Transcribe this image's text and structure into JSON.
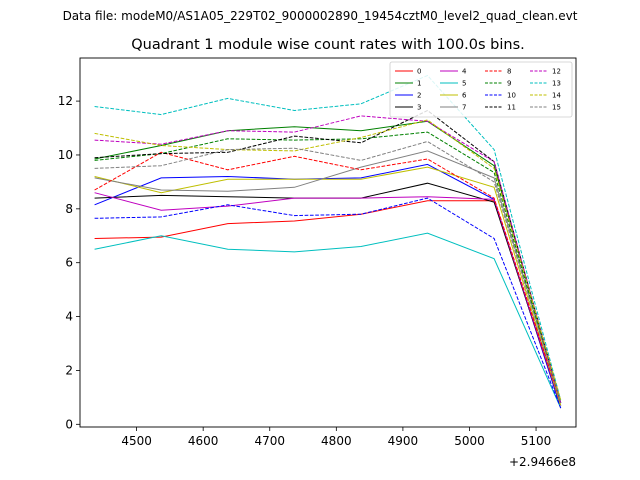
{
  "chart_data": {
    "type": "line",
    "suptitle": "Data file: modeM0/AS1A05_229T02_9000002890_19454cztM0_level2_quad_clean.evt",
    "title": "Quadrant 1 module wise count rates with 100.0s bins.",
    "xlabel": "",
    "ylabel": "",
    "x_offset_label": "+2.9466e8",
    "x": [
      4437,
      4537,
      4637,
      4737,
      4837,
      4937,
      5037,
      5137
    ],
    "xlim": [
      4415,
      5160
    ],
    "ylim": [
      -0.1,
      13.6
    ],
    "xticks": [
      4500,
      4600,
      4700,
      4800,
      4900,
      5000,
      5100
    ],
    "xtick_labels": [
      "4500",
      "4600",
      "4700",
      "4800",
      "4900",
      "5000",
      "5100"
    ],
    "yticks": [
      0,
      2,
      4,
      6,
      8,
      10,
      12
    ],
    "ytick_labels": [
      "0",
      "2",
      "4",
      "6",
      "8",
      "10",
      "12"
    ],
    "grid": false,
    "legend_location": "top-right",
    "series": [
      {
        "name": "0",
        "color": "#ff0000",
        "dash": "solid",
        "values": [
          6.9,
          6.95,
          7.45,
          7.55,
          7.8,
          8.3,
          8.3,
          0.7
        ]
      },
      {
        "name": "1",
        "color": "#008000",
        "dash": "solid",
        "values": [
          9.85,
          10.35,
          10.9,
          11.05,
          10.9,
          11.25,
          9.6,
          0.8
        ]
      },
      {
        "name": "2",
        "color": "#0000ff",
        "dash": "solid",
        "values": [
          8.15,
          9.15,
          9.2,
          9.1,
          9.15,
          9.65,
          8.35,
          0.6
        ]
      },
      {
        "name": "3",
        "color": "#000000",
        "dash": "solid",
        "values": [
          8.4,
          8.5,
          8.45,
          8.4,
          8.4,
          8.95,
          8.25,
          0.7
        ]
      },
      {
        "name": "4",
        "color": "#bf00bf",
        "dash": "solid",
        "values": [
          8.6,
          7.95,
          8.1,
          8.4,
          8.4,
          8.45,
          8.35,
          0.7
        ]
      },
      {
        "name": "5",
        "color": "#00bfbf",
        "dash": "solid",
        "values": [
          6.5,
          7.0,
          6.5,
          6.4,
          6.6,
          7.1,
          6.15,
          0.6
        ]
      },
      {
        "name": "6",
        "color": "#bfbf00",
        "dash": "solid",
        "values": [
          9.2,
          8.6,
          9.1,
          9.1,
          9.1,
          9.55,
          8.8,
          0.7
        ]
      },
      {
        "name": "7",
        "color": "#808080",
        "dash": "solid",
        "values": [
          9.15,
          8.7,
          8.65,
          8.8,
          9.55,
          10.15,
          9.15,
          0.8
        ]
      },
      {
        "name": "8",
        "color": "#ff0000",
        "dash": "dashed",
        "values": [
          8.7,
          10.1,
          9.45,
          9.95,
          9.45,
          9.85,
          8.4,
          0.8
        ]
      },
      {
        "name": "9",
        "color": "#008000",
        "dash": "dashed",
        "values": [
          9.8,
          10.05,
          10.6,
          10.55,
          10.6,
          10.85,
          9.35,
          0.8
        ]
      },
      {
        "name": "10",
        "color": "#0000ff",
        "dash": "dashed",
        "values": [
          7.65,
          7.7,
          8.15,
          7.75,
          7.8,
          8.4,
          6.9,
          0.6
        ]
      },
      {
        "name": "11",
        "color": "#000000",
        "dash": "dashed",
        "values": [
          9.9,
          10.05,
          10.1,
          10.7,
          10.45,
          11.65,
          9.75,
          0.8
        ]
      },
      {
        "name": "12",
        "color": "#bf00bf",
        "dash": "dashed",
        "values": [
          10.55,
          10.4,
          10.9,
          10.85,
          11.45,
          11.25,
          9.75,
          0.8
        ]
      },
      {
        "name": "13",
        "color": "#00bfbf",
        "dash": "dashed",
        "values": [
          11.8,
          11.5,
          12.1,
          11.65,
          11.9,
          12.95,
          10.2,
          0.9
        ]
      },
      {
        "name": "14",
        "color": "#bfbf00",
        "dash": "dashed",
        "values": [
          10.8,
          10.35,
          10.2,
          10.15,
          10.65,
          11.3,
          9.5,
          0.9
        ]
      },
      {
        "name": "15",
        "color": "#808080",
        "dash": "dashed",
        "values": [
          9.5,
          9.6,
          10.2,
          10.25,
          9.8,
          10.5,
          9.0,
          0.8
        ]
      }
    ]
  }
}
